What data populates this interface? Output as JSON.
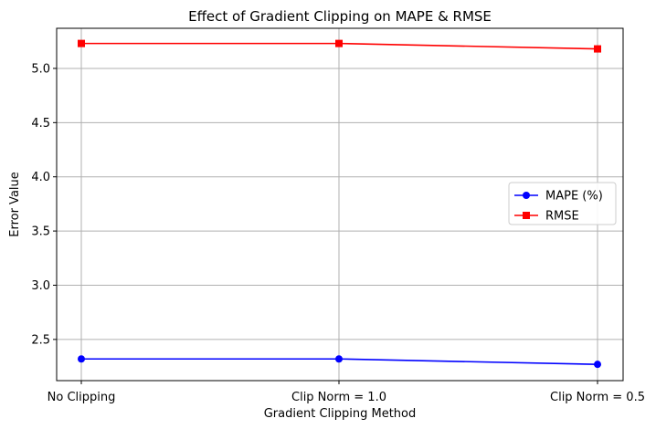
{
  "chart_data": {
    "type": "line",
    "title": "Effect of Gradient Clipping on MAPE & RMSE",
    "xlabel": "Gradient Clipping Method",
    "ylabel": "Error Value",
    "categories": [
      "No Clipping",
      "Clip Norm = 1.0",
      "Clip Norm = 0.5"
    ],
    "ylim": [
      2.12,
      5.37
    ],
    "yticks": [
      2.5,
      3.0,
      3.5,
      4.0,
      4.5,
      5.0
    ],
    "ytick_labels": [
      "2.5",
      "3.0",
      "3.5",
      "4.0",
      "4.5",
      "5.0"
    ],
    "grid": true,
    "legend_position": "center-right",
    "series": [
      {
        "name": "MAPE (%)",
        "values": [
          2.32,
          2.32,
          2.27
        ],
        "color": "#0000ff",
        "marker": "circle"
      },
      {
        "name": "RMSE",
        "values": [
          5.23,
          5.23,
          5.18
        ],
        "color": "#ff0000",
        "marker": "square"
      }
    ]
  }
}
